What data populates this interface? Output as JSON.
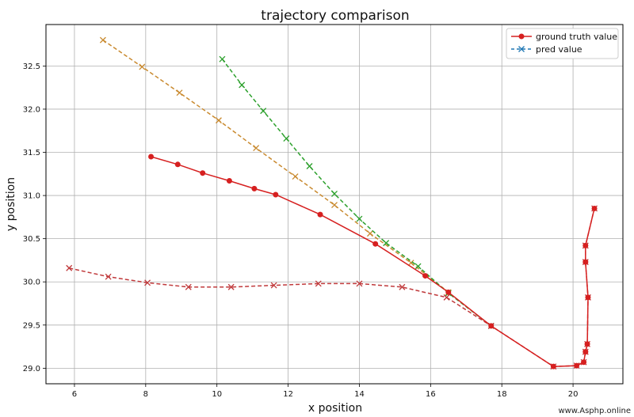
{
  "chart_data": {
    "type": "line",
    "title": "trajectory comparison",
    "xlabel": "x position",
    "ylabel": "y position",
    "xlim": [
      5.2,
      21.4
    ],
    "ylim": [
      28.82,
      32.98
    ],
    "x_ticks": [
      6,
      8,
      10,
      12,
      14,
      16,
      18,
      20
    ],
    "x_tick_labels": [
      "6",
      "8",
      "10",
      "12",
      "14",
      "16",
      "18",
      "20"
    ],
    "y_ticks": [
      29.0,
      29.5,
      30.0,
      30.5,
      31.0,
      31.5,
      32.0,
      32.5
    ],
    "y_tick_labels": [
      "29.0",
      "29.5",
      "30.0",
      "30.5",
      "31.0",
      "31.5",
      "32.0",
      "32.5"
    ],
    "grid": true,
    "legend_position": "top-right",
    "legend": [
      {
        "label": "ground truth value",
        "color": "#d62020",
        "marker": "circle",
        "linestyle": "solid"
      },
      {
        "label": "pred value",
        "color": "#1f77b4",
        "marker": "x",
        "linestyle": "dashed"
      }
    ],
    "series": [
      {
        "role": "ground truth value",
        "color": "#d62020",
        "marker": "circle",
        "linestyle": "solid",
        "points": [
          [
            8.15,
            31.45
          ],
          [
            8.9,
            31.36
          ],
          [
            9.6,
            31.26
          ],
          [
            10.35,
            31.17
          ],
          [
            11.05,
            31.08
          ],
          [
            11.65,
            31.01
          ],
          [
            12.9,
            30.78
          ],
          [
            14.45,
            30.44
          ],
          [
            15.85,
            30.07
          ],
          [
            16.5,
            29.88
          ],
          [
            17.7,
            29.49
          ],
          [
            19.45,
            29.02
          ],
          [
            20.1,
            29.03
          ],
          [
            20.3,
            29.07
          ],
          [
            20.35,
            29.19
          ],
          [
            20.4,
            29.28
          ],
          [
            20.42,
            29.82
          ],
          [
            20.35,
            30.23
          ],
          [
            20.35,
            30.42
          ],
          [
            20.6,
            30.85
          ]
        ]
      },
      {
        "role": "pred value",
        "color": "#c98a2f",
        "marker": "x",
        "linestyle": "dashed",
        "points": [
          [
            6.8,
            32.8
          ],
          [
            7.9,
            32.49
          ],
          [
            8.95,
            32.19
          ],
          [
            10.05,
            31.87
          ],
          [
            11.1,
            31.55
          ],
          [
            12.2,
            31.22
          ],
          [
            13.3,
            30.89
          ],
          [
            14.3,
            30.56
          ],
          [
            15.45,
            30.22
          ],
          [
            16.5,
            29.88
          ]
        ]
      },
      {
        "role": "pred value",
        "color": "#2ca02c",
        "marker": "x",
        "linestyle": "dashed",
        "points": [
          [
            10.15,
            32.58
          ],
          [
            10.7,
            32.28
          ],
          [
            11.3,
            31.98
          ],
          [
            11.95,
            31.66
          ],
          [
            12.6,
            31.34
          ],
          [
            13.3,
            31.02
          ],
          [
            14.0,
            30.73
          ],
          [
            14.75,
            30.45
          ],
          [
            15.65,
            30.18
          ],
          [
            16.5,
            29.87
          ],
          [
            17.7,
            29.49
          ]
        ]
      },
      {
        "role": "pred value",
        "color": "#c0393b",
        "marker": "x",
        "linestyle": "dashed",
        "points": [
          [
            5.85,
            30.16
          ],
          [
            6.95,
            30.06
          ],
          [
            8.05,
            29.99
          ],
          [
            9.2,
            29.94
          ],
          [
            10.4,
            29.94
          ],
          [
            11.6,
            29.96
          ],
          [
            12.85,
            29.98
          ],
          [
            14.0,
            29.98
          ],
          [
            15.2,
            29.94
          ],
          [
            16.45,
            29.82
          ],
          [
            17.7,
            29.49
          ],
          [
            19.45,
            29.02
          ],
          [
            20.1,
            29.03
          ],
          [
            20.3,
            29.07
          ],
          [
            20.35,
            29.19
          ],
          [
            20.4,
            29.28
          ],
          [
            20.42,
            29.82
          ],
          [
            20.35,
            30.23
          ],
          [
            20.35,
            30.42
          ],
          [
            20.6,
            30.85
          ]
        ]
      }
    ]
  },
  "watermark": "www.Asphp.online"
}
